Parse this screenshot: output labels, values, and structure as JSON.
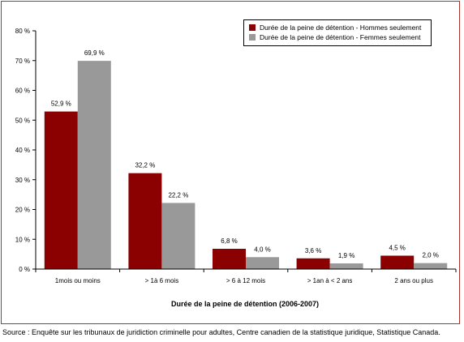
{
  "chart_data": {
    "type": "bar",
    "categories": [
      "1mois ou moins",
      "> 1à 6 mois",
      "> 6 à 12 mois",
      "> 1an à < 2 ans",
      "2 ans ou plus"
    ],
    "series": [
      {
        "name": "Durée de la peine de détention - Hommes seulement",
        "color": "#8b0000",
        "values": [
          52.9,
          32.2,
          6.8,
          3.6,
          4.5
        ],
        "labels": [
          "52,9 %",
          "32,2 %",
          "6,8 %",
          "3,6 %",
          "4,5 %"
        ]
      },
      {
        "name": "Durée de la peine de détention - Femmes seulement",
        "color": "#999999",
        "values": [
          69.9,
          22.2,
          4.0,
          1.9,
          2.0
        ],
        "labels": [
          "69,9 %",
          "22,2 %",
          "4,0 %",
          "1,9 %",
          "2,0 %"
        ]
      }
    ],
    "title": "",
    "xlabel": "Durée de la peine de détention  (2006-2007)",
    "ylabel": "",
    "ylim": [
      0,
      80
    ],
    "yticks": [
      {
        "value": 0,
        "label": "0 %"
      },
      {
        "value": 10,
        "label": "10 %"
      },
      {
        "value": 20,
        "label": "20 %"
      },
      {
        "value": 30,
        "label": "30 %"
      },
      {
        "value": 40,
        "label": "40 %"
      },
      {
        "value": 50,
        "label": "50 %"
      },
      {
        "value": 60,
        "label": "60 %"
      },
      {
        "value": 70,
        "label": "70 %"
      },
      {
        "value": 80,
        "label": "80 %"
      }
    ],
    "grid": false,
    "legend_position": "top-right",
    "frame_color": "#b0302a"
  },
  "source": "Source : Enquête sur les tribunaux de juridiction criminelle pour adultes, Centre canadien de la statistique juridique, Statistique Canada."
}
